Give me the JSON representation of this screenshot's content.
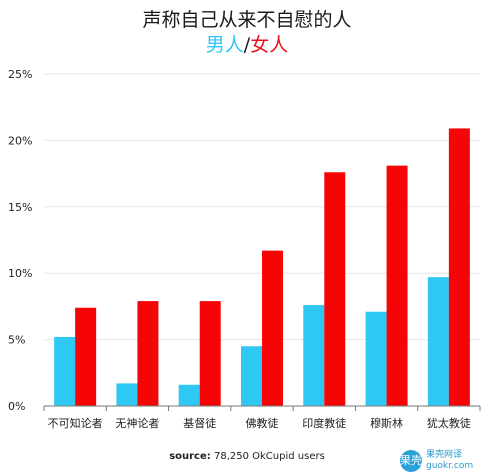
{
  "title": "声称自己从来不自慰的人",
  "subtitle": {
    "male": "男人",
    "separator": "/",
    "female": "女人"
  },
  "source": {
    "label": "source:",
    "text": "78,250 OkCupid users"
  },
  "watermark": {
    "logo": "果壳",
    "cn": "果壳网译",
    "url": "guokr.com"
  },
  "colors": {
    "male": "#2ec8f2",
    "female": "#f50505",
    "grid": "#e6e6e6",
    "axis": "#777777"
  },
  "chart_data": {
    "type": "bar",
    "title": "声称自己从来不自慰的人",
    "categories": [
      "不可知论者",
      "无神论者",
      "基督徒",
      "佛教徒",
      "印度教徒",
      "穆斯林",
      "犹太教徒"
    ],
    "series": [
      {
        "name": "男人",
        "values": [
          5.2,
          1.7,
          1.6,
          4.5,
          7.6,
          7.1,
          9.7
        ]
      },
      {
        "name": "女人",
        "values": [
          7.4,
          7.9,
          7.9,
          11.7,
          17.6,
          18.1,
          20.9
        ]
      }
    ],
    "yticks": [
      "0%",
      "5%",
      "10%",
      "15%",
      "20%",
      "25%"
    ],
    "ylim": [
      0,
      25
    ],
    "grid": true,
    "legend": "subtitle"
  }
}
